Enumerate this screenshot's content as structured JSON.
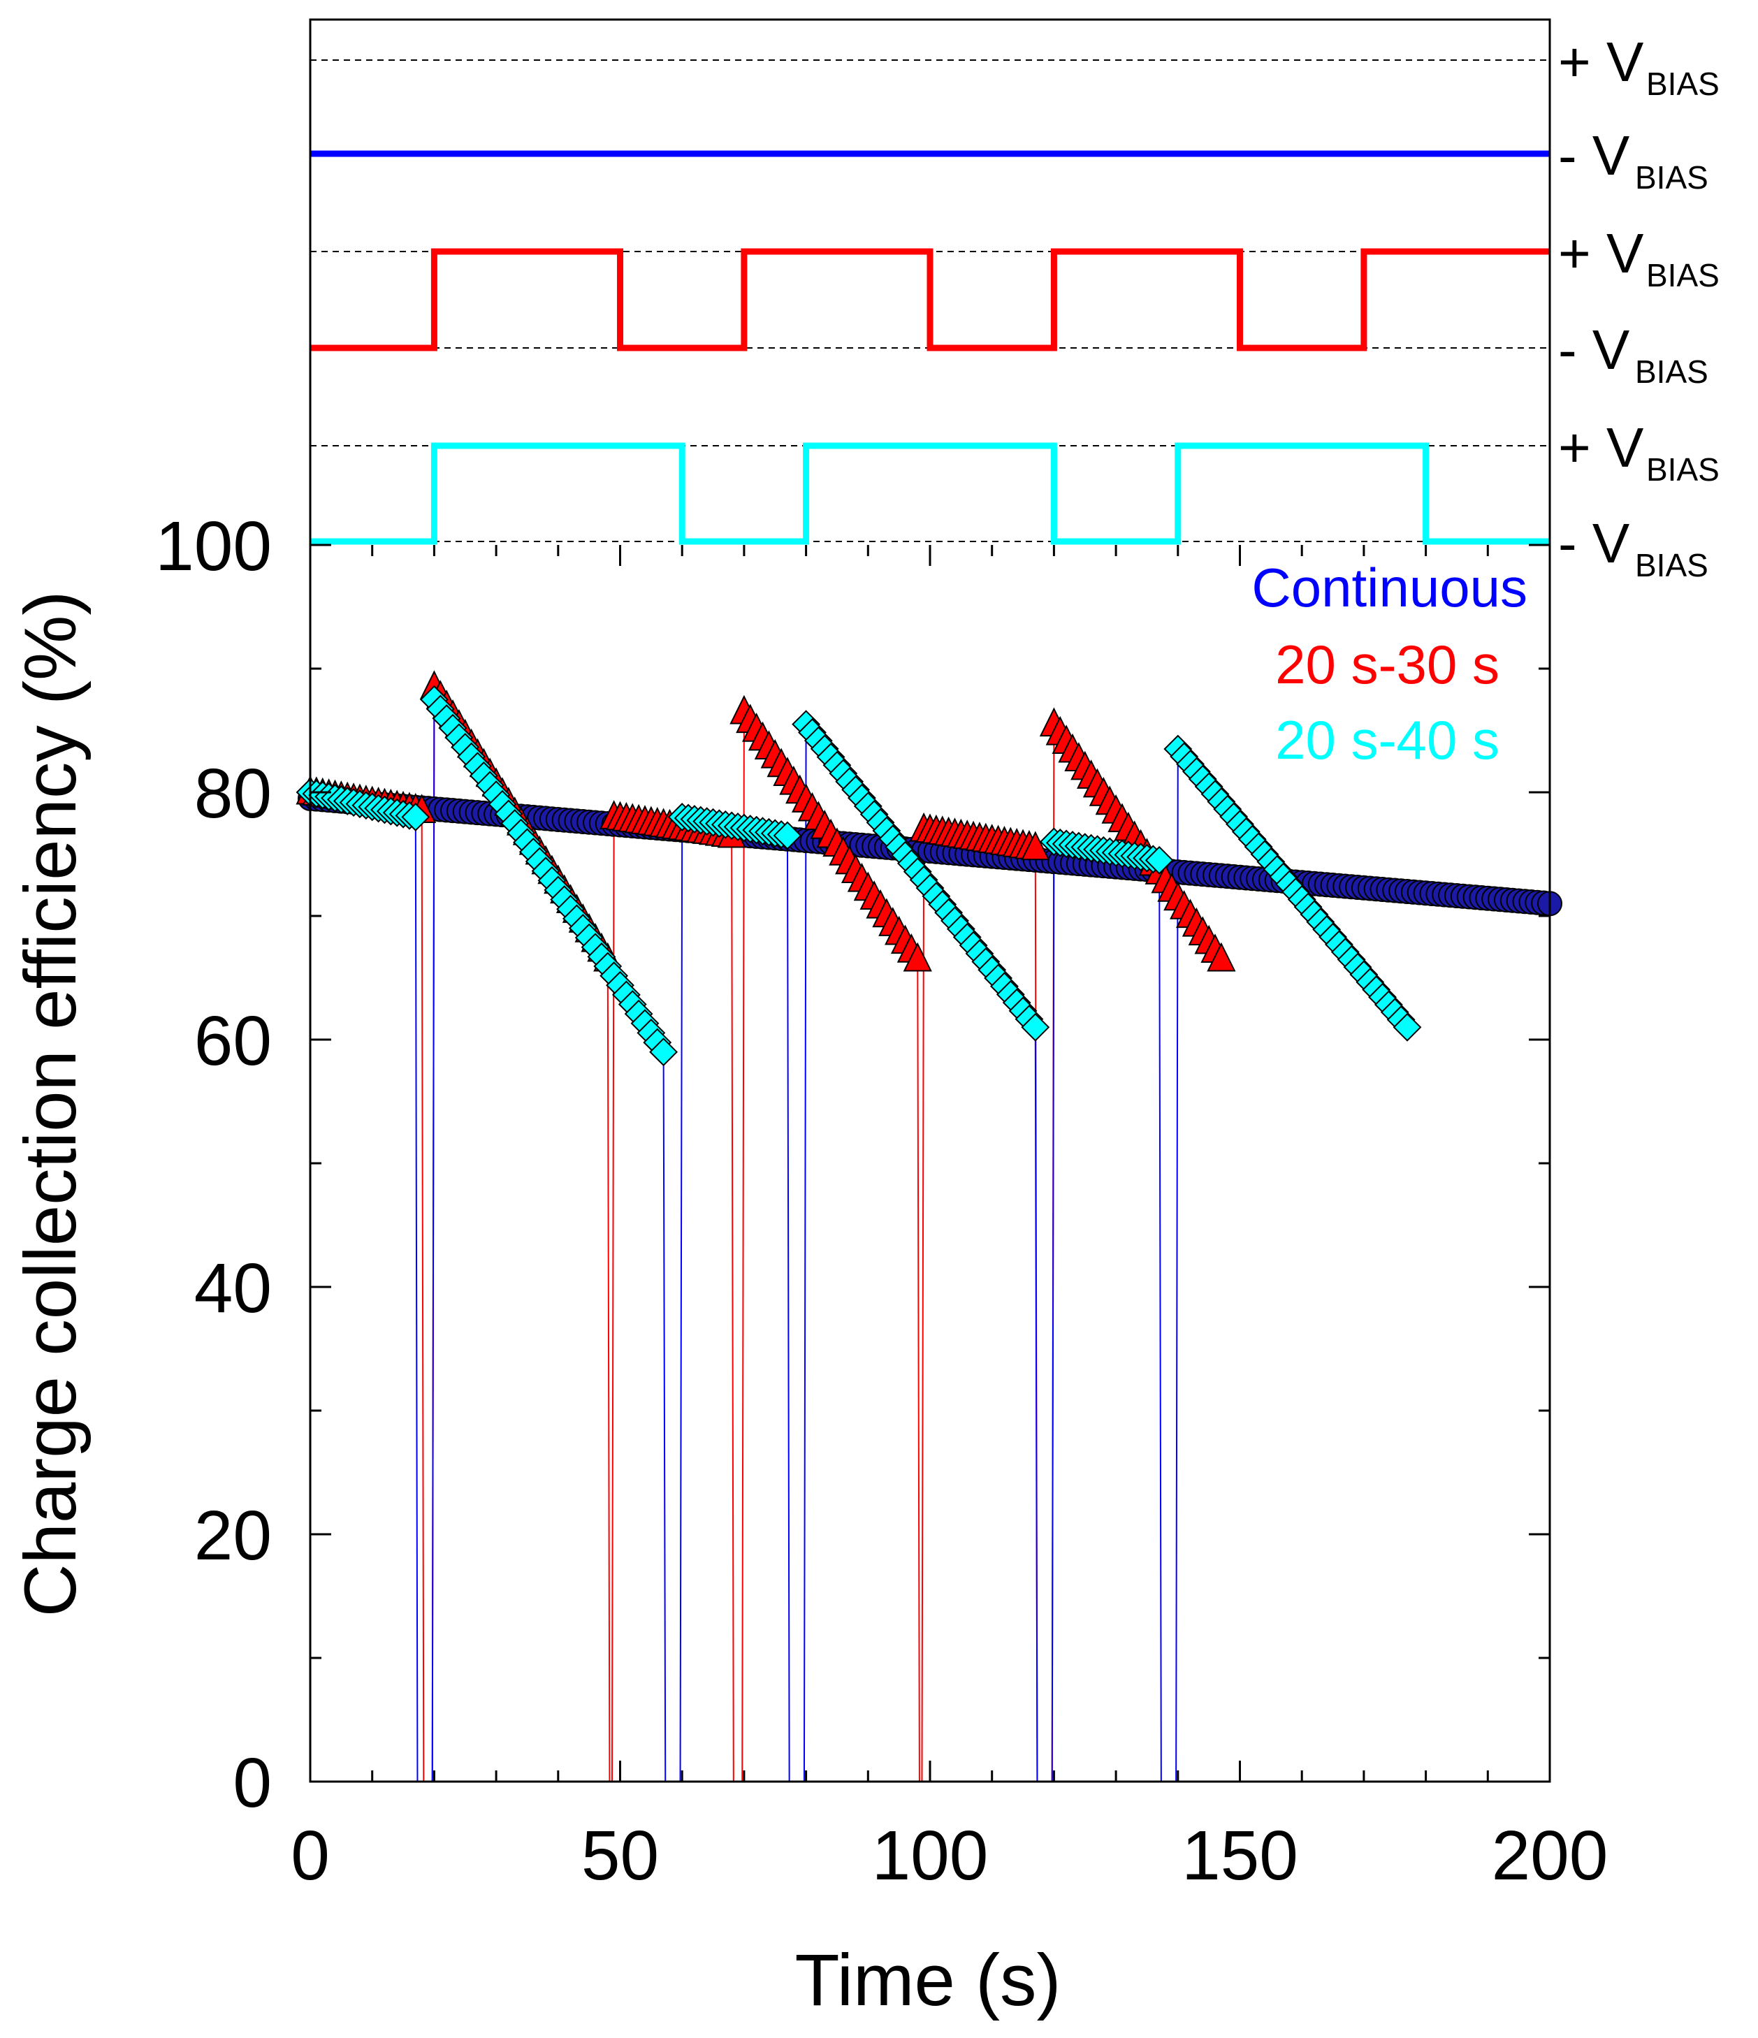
{
  "chart_data": {
    "type": "scatter",
    "xlabel": "Time (s)",
    "ylabel": "Charge collection efficiency (%)",
    "xlim": [
      0,
      200
    ],
    "ylim": [
      0,
      100
    ],
    "x_ticks": [
      "0",
      "50",
      "100",
      "150",
      "200"
    ],
    "y_ticks": [
      "0",
      "20",
      "40",
      "60",
      "80",
      "100"
    ],
    "grid": false,
    "legend_position": "top-right",
    "colors": {
      "continuous": "#0000ff",
      "s20_30": "#ff0000",
      "s20_40": "#00ffff",
      "marker_edge": "#000000",
      "continuous_marker": "#1a1aa6"
    },
    "legend": [
      {
        "label": "Continuous",
        "color": "#0000ff"
      },
      {
        "label": "20 s-30 s",
        "color": "#ff0000"
      },
      {
        "label": "20 s-40 s",
        "color": "#00ffff"
      }
    ],
    "bias_labels": {
      "plus_prefix": "+ V",
      "minus_prefix": "- V",
      "subscript": "BIAS"
    },
    "bias_waveforms": [
      {
        "series": "Continuous",
        "segments": [
          {
            "from": 0,
            "to": 200,
            "level": "-"
          }
        ]
      },
      {
        "series": "20 s-30 s",
        "segments": [
          {
            "from": 0,
            "to": 20,
            "level": "-"
          },
          {
            "from": 20,
            "to": 50,
            "level": "+"
          },
          {
            "from": 50,
            "to": 70,
            "level": "-"
          },
          {
            "from": 70,
            "to": 100,
            "level": "+"
          },
          {
            "from": 100,
            "to": 120,
            "level": "-"
          },
          {
            "from": 120,
            "to": 150,
            "level": "+"
          },
          {
            "from": 150,
            "to": 170,
            "level": "-"
          },
          {
            "from": 170,
            "to": 200,
            "level": "+"
          }
        ]
      },
      {
        "series": "20 s-40 s",
        "segments": [
          {
            "from": 0,
            "to": 20,
            "level": "-"
          },
          {
            "from": 20,
            "to": 60,
            "level": "+"
          },
          {
            "from": 60,
            "to": 80,
            "level": "-"
          },
          {
            "from": 80,
            "to": 120,
            "level": "+"
          },
          {
            "from": 120,
            "to": 140,
            "level": "-"
          },
          {
            "from": 140,
            "to": 180,
            "level": "+"
          },
          {
            "from": 180,
            "to": 200,
            "level": "-"
          }
        ]
      }
    ],
    "series": [
      {
        "name": "Continuous",
        "marker": "circle",
        "segments": [
          {
            "x_start": 0,
            "x_end": 200,
            "y_start": 79.5,
            "y_end": 71.0,
            "step": 1
          }
        ]
      },
      {
        "name": "20 s-30 s",
        "marker": "triangle",
        "segments": [
          {
            "x_start": 0,
            "x_end": 18,
            "y_start": 80.0,
            "y_end": 78.5,
            "step": 1
          },
          {
            "x_start": 20,
            "x_end": 48,
            "y_start": 88.5,
            "y_end": 66.5,
            "step": 1
          },
          {
            "x_start": 49,
            "x_end": 68,
            "y_start": 78.0,
            "y_end": 76.5,
            "step": 1
          },
          {
            "x_start": 70,
            "x_end": 98,
            "y_start": 86.5,
            "y_end": 66.5,
            "step": 1
          },
          {
            "x_start": 99,
            "x_end": 117,
            "y_start": 77.0,
            "y_end": 75.5,
            "step": 1
          },
          {
            "x_start": 120,
            "x_end": 147,
            "y_start": 85.5,
            "y_end": 66.5,
            "step": 1
          }
        ]
      },
      {
        "name": "20 s-40 s",
        "marker": "diamond",
        "segments": [
          {
            "x_start": 0,
            "x_end": 17,
            "y_start": 80.0,
            "y_end": 78.0,
            "step": 1
          },
          {
            "x_start": 20,
            "x_end": 57,
            "y_start": 87.5,
            "y_end": 59.0,
            "step": 1
          },
          {
            "x_start": 60,
            "x_end": 77,
            "y_start": 78.0,
            "y_end": 76.5,
            "step": 1
          },
          {
            "x_start": 80,
            "x_end": 117,
            "y_start": 85.5,
            "y_end": 61.0,
            "step": 1
          },
          {
            "x_start": 120,
            "x_end": 137,
            "y_start": 76.0,
            "y_end": 74.5,
            "step": 1
          },
          {
            "x_start": 140,
            "x_end": 177,
            "y_start": 83.5,
            "y_end": 61.0,
            "step": 1
          }
        ]
      }
    ]
  }
}
